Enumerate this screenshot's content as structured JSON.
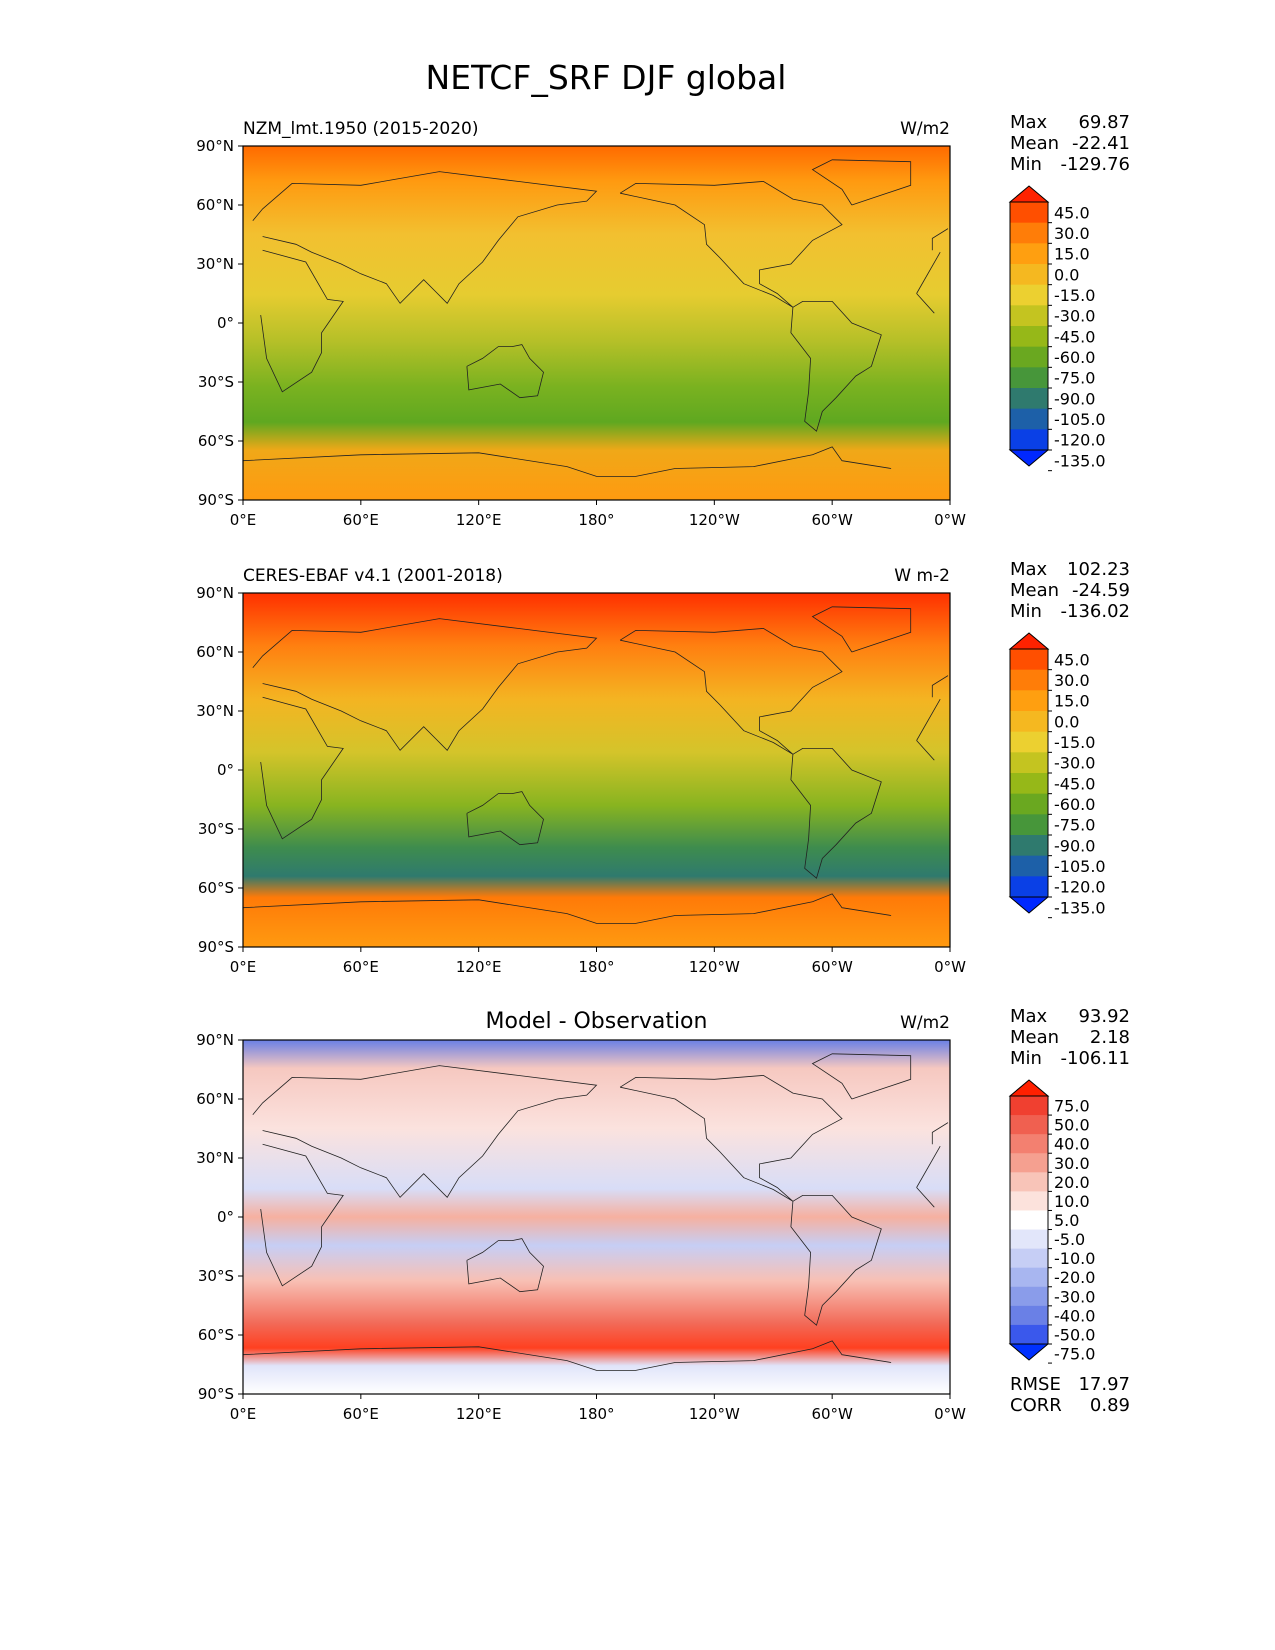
{
  "figure_title": "NETCF_SRF DJF global",
  "chart_data": [
    {
      "type": "heatmap",
      "title": "NZM_lmt.1950 (2015-2020)",
      "units": "W/m2",
      "stats": [
        {
          "label": "Max",
          "value": "69.87"
        },
        {
          "label": "Mean",
          "value": "-22.41"
        },
        {
          "label": "Min",
          "value": "-129.76"
        }
      ],
      "colorbar": {
        "ticks": [
          "45.0",
          "30.0",
          "15.0",
          "0.0",
          "-15.0",
          "-30.0",
          "-45.0",
          "-60.0",
          "-75.0",
          "-90.0",
          "-105.0",
          "-120.0",
          "-135.0"
        ],
        "colors": [
          "#ff2200",
          "#ff4f00",
          "#ff7d08",
          "#ff9f10",
          "#f5b820",
          "#ecd030",
          "#c4c420",
          "#96b818",
          "#6aa820",
          "#47963a",
          "#2f7a6e",
          "#1d60a8",
          "#0a40e6",
          "#0028ff"
        ]
      },
      "x_ticks": [
        "0°E",
        "60°E",
        "120°E",
        "180°",
        "120°W",
        "60°W",
        "0°W"
      ],
      "y_ticks": [
        "90°N",
        "60°N",
        "30°N",
        "0°",
        "30°S",
        "60°S",
        "90°S"
      ],
      "xlim": [
        0,
        360
      ],
      "ylim": [
        -90,
        90
      ]
    },
    {
      "type": "heatmap",
      "title": "CERES-EBAF v4.1 (2001-2018)",
      "units": "W m-2",
      "stats": [
        {
          "label": "Max",
          "value": "102.23"
        },
        {
          "label": "Mean",
          "value": "-24.59"
        },
        {
          "label": "Min",
          "value": "-136.02"
        }
      ],
      "colorbar": {
        "ticks": [
          "45.0",
          "30.0",
          "15.0",
          "0.0",
          "-15.0",
          "-30.0",
          "-45.0",
          "-60.0",
          "-75.0",
          "-90.0",
          "-105.0",
          "-120.0",
          "-135.0"
        ],
        "colors": [
          "#ff2200",
          "#ff4f00",
          "#ff7d08",
          "#ff9f10",
          "#f5b820",
          "#ecd030",
          "#c4c420",
          "#96b818",
          "#6aa820",
          "#47963a",
          "#2f7a6e",
          "#1d60a8",
          "#0a40e6",
          "#0028ff"
        ]
      },
      "x_ticks": [
        "0°E",
        "60°E",
        "120°E",
        "180°",
        "120°W",
        "60°W",
        "0°W"
      ],
      "y_ticks": [
        "90°N",
        "60°N",
        "30°N",
        "0°",
        "30°S",
        "60°S",
        "90°S"
      ],
      "xlim": [
        0,
        360
      ],
      "ylim": [
        -90,
        90
      ]
    },
    {
      "type": "heatmap",
      "title": "Model - Observation",
      "units": "W/m2",
      "stats": [
        {
          "label": "Max",
          "value": "93.92"
        },
        {
          "label": "Mean",
          "value": "2.18"
        },
        {
          "label": "Min",
          "value": "-106.11"
        }
      ],
      "extra_stats": [
        {
          "label": "RMSE",
          "value": "17.97"
        },
        {
          "label": "CORR",
          "value": "0.89"
        }
      ],
      "colorbar": {
        "ticks": [
          "75.0",
          "50.0",
          "40.0",
          "30.0",
          "20.0",
          "10.0",
          "5.0",
          "-5.0",
          "-10.0",
          "-20.0",
          "-30.0",
          "-40.0",
          "-50.0",
          "-75.0"
        ],
        "colors": [
          "#ff2000",
          "#f04030",
          "#f06050",
          "#f38070",
          "#f5a090",
          "#f8c4b8",
          "#fce2dc",
          "#ffffff",
          "#e2e6fa",
          "#c6cef5",
          "#a8b6f0",
          "#8a9cea",
          "#6a80e6",
          "#3a58ec",
          "#0030ff"
        ]
      },
      "x_ticks": [
        "0°E",
        "60°E",
        "120°E",
        "180°",
        "120°W",
        "60°W",
        "0°W"
      ],
      "y_ticks": [
        "90°N",
        "60°N",
        "30°N",
        "0°",
        "30°S",
        "60°S",
        "90°S"
      ],
      "xlim": [
        0,
        360
      ],
      "ylim": [
        -90,
        90
      ]
    }
  ]
}
